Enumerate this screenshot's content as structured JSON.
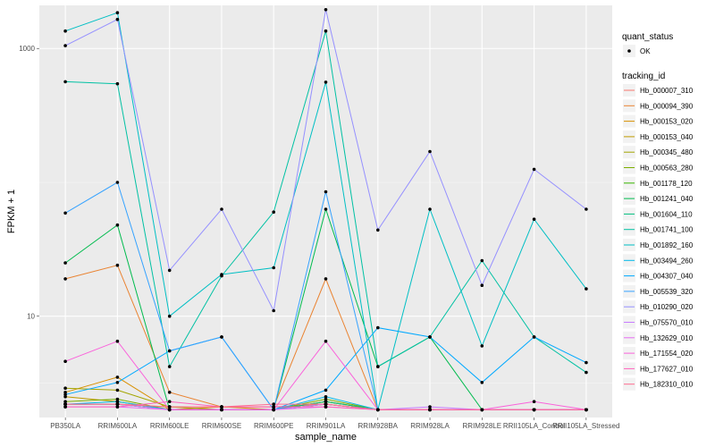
{
  "chart_data": {
    "type": "line",
    "title": "",
    "xlabel": "sample_name",
    "ylabel": "FPKM + 1",
    "y_scale": "log10",
    "ylim": [
      1.75,
      2100
    ],
    "grid": true,
    "legend_position": "right",
    "yticks": [
      {
        "value": 10,
        "label": "10"
      },
      {
        "value": 1000,
        "label": "1000"
      }
    ],
    "categories": [
      "PB350LA",
      "RRIM600LA",
      "RRIM600LE",
      "RRIM600SE",
      "RRIM600PE",
      "RRIM901LA",
      "RRIM928BA",
      "RRIM928LA",
      "RRIM928LE",
      "RRII105LA_Control",
      "RRII105LA_Stressed"
    ],
    "quant_status_legend": {
      "title": "quant_status",
      "label": "OK"
    },
    "series_legend_title": "tracking_id",
    "series": [
      {
        "name": "Hb_000007_310",
        "color": "#F8766D",
        "values": [
          2.2,
          2.2,
          2.1,
          2.1,
          2.1,
          2.2,
          2.0,
          2.0,
          2.0,
          2.0,
          2.0
        ]
      },
      {
        "name": "Hb_000094_390",
        "color": "#EA8331",
        "values": [
          19.0,
          24.0,
          2.7,
          2.1,
          2.1,
          19.0,
          2.0,
          2.0,
          2.0,
          2.0,
          2.0
        ]
      },
      {
        "name": "Hb_000153_020",
        "color": "#D89000",
        "values": [
          2.7,
          3.5,
          2.0,
          2.1,
          2.0,
          2.2,
          2.0,
          2.0,
          2.0,
          2.0,
          2.0
        ]
      },
      {
        "name": "Hb_000153_040",
        "color": "#C09B00",
        "values": [
          2.5,
          2.3,
          2.0,
          2.0,
          2.0,
          2.3,
          2.0,
          2.0,
          2.0,
          2.0,
          2.0
        ]
      },
      {
        "name": "Hb_000345_480",
        "color": "#A3A500",
        "values": [
          2.9,
          2.8,
          2.1,
          2.0,
          2.0,
          2.3,
          2.0,
          2.0,
          2.0,
          2.0,
          2.0
        ]
      },
      {
        "name": "Hb_000563_280",
        "color": "#7CAE00",
        "values": [
          2.3,
          2.4,
          2.0,
          2.0,
          2.0,
          2.4,
          2.0,
          2.0,
          2.0,
          2.0,
          2.0
        ]
      },
      {
        "name": "Hb_001178_120",
        "color": "#39B600",
        "values": [
          2.2,
          2.2,
          2.0,
          2.0,
          2.0,
          2.2,
          2.0,
          2.0,
          2.0,
          2.0,
          2.0
        ]
      },
      {
        "name": "Hb_001241_040",
        "color": "#00BB4E",
        "values": [
          25.0,
          48.0,
          2.0,
          2.0,
          2.0,
          63.0,
          4.2,
          7.0,
          2.0,
          2.0,
          2.0
        ]
      },
      {
        "name": "Hb_001604_110",
        "color": "#00BF7D",
        "values": [
          2.2,
          2.2,
          2.0,
          2.0,
          2.0,
          2.3,
          2.0,
          2.0,
          2.0,
          2.0,
          2.0
        ]
      },
      {
        "name": "Hb_001741_100",
        "color": "#00C1A3",
        "values": [
          565.0,
          545.0,
          4.2,
          20.0,
          60.0,
          1350.0,
          4.2,
          7.0,
          26.0,
          7.0,
          3.8
        ]
      },
      {
        "name": "Hb_001892_160",
        "color": "#00BFC4",
        "values": [
          1350.0,
          1850.0,
          10.0,
          20.5,
          23.0,
          560.0,
          2.0,
          63.0,
          6.0,
          53.0,
          16.0
        ]
      },
      {
        "name": "Hb_003494_260",
        "color": "#00B8E7",
        "values": [
          2.2,
          2.3,
          2.0,
          2.0,
          2.0,
          2.5,
          2.0,
          2.0,
          2.0,
          2.0,
          2.0
        ]
      },
      {
        "name": "Hb_004307_040",
        "color": "#00A9FF",
        "values": [
          2.6,
          3.2,
          5.5,
          7.0,
          2.0,
          2.8,
          8.2,
          7.0,
          3.2,
          7.0,
          4.5
        ]
      },
      {
        "name": "Hb_005539_320",
        "color": "#35A2FF",
        "values": [
          59.0,
          100.0,
          5.5,
          7.0,
          2.0,
          85.0,
          2.0,
          2.0,
          2.0,
          2.0,
          2.0
        ]
      },
      {
        "name": "Hb_010290_020",
        "color": "#9590FF",
        "values": [
          1050.0,
          1650.0,
          22.0,
          63.0,
          11.0,
          1950.0,
          44.0,
          170.0,
          17.0,
          125.0,
          63.0
        ]
      },
      {
        "name": "Hb_075570_010",
        "color": "#C77CFF",
        "values": [
          2.2,
          2.2,
          2.0,
          2.0,
          2.0,
          2.2,
          2.0,
          2.1,
          2.0,
          2.0,
          2.0
        ]
      },
      {
        "name": "Hb_132629_010",
        "color": "#E76BF3",
        "values": [
          2.1,
          2.1,
          2.0,
          2.0,
          2.0,
          2.1,
          2.0,
          2.0,
          2.0,
          2.0,
          2.0
        ]
      },
      {
        "name": "Hb_171554_020",
        "color": "#FA62DB",
        "values": [
          4.6,
          6.5,
          2.0,
          2.0,
          2.0,
          6.5,
          2.0,
          2.0,
          2.0,
          2.3,
          2.0
        ]
      },
      {
        "name": "Hb_177627_010",
        "color": "#FF62BC",
        "values": [
          2.1,
          2.1,
          2.3,
          2.1,
          2.1,
          2.1,
          2.0,
          2.0,
          2.0,
          2.0,
          2.0
        ]
      },
      {
        "name": "Hb_182310_010",
        "color": "#FF6C91",
        "values": [
          2.2,
          2.2,
          2.1,
          2.1,
          2.2,
          2.2,
          2.0,
          2.0,
          2.0,
          2.0,
          2.0
        ]
      }
    ]
  }
}
